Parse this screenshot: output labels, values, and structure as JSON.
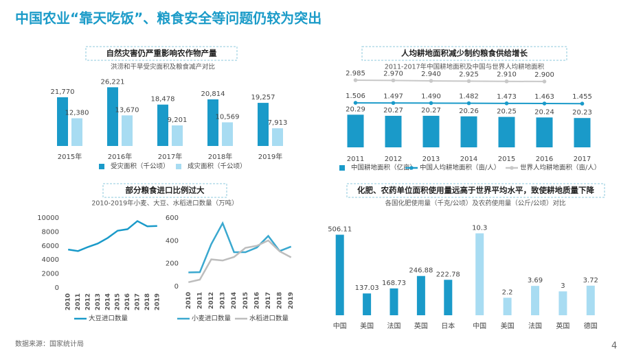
{
  "page": {
    "title": "中国农业“靠天吃饭”、粮食安全等问题仍较为突出",
    "source": "数据来源：国家统计局",
    "page_number": 4
  },
  "chart_data": [
    {
      "type": "bar",
      "title": "自然灾害仍严重影响农作物产量",
      "subtitle": "洪涝和干旱受灾面积及粮食减产对比",
      "categories": [
        "2015年",
        "2016年",
        "2017年",
        "2018年",
        "2019年"
      ],
      "ylim": [
        0,
        30000
      ],
      "series": [
        {
          "name": "受灾面积（千公顷）",
          "color": "#1a9ac9",
          "values": [
            21770,
            26221,
            18478,
            20814,
            19257
          ],
          "value_labels": [
            "21,770",
            "26,221",
            "18,478",
            "20,814",
            "19,257"
          ]
        },
        {
          "name": "成灾面积（千公顷）",
          "color": "#a8dcf2",
          "values": [
            12380,
            13670,
            9201,
            10569,
            7913
          ],
          "value_labels": [
            "12,380",
            "13,670",
            "9,201",
            "10,569",
            "7,913"
          ]
        }
      ]
    },
    {
      "type": "bar_line",
      "title": "人均耕地面积减少制约粮食供给增长",
      "subtitle": "2011-2017年中国耕地面积及中国与世界人均耕地面积",
      "categories": [
        "2011",
        "2012",
        "2013",
        "2014",
        "2015",
        "2016",
        "2017"
      ],
      "ylim": [
        19.7,
        21.0
      ],
      "y2lim": [
        -1.4,
        3.3
      ],
      "series": [
        {
          "name": "中国耕地面积（亿亩）",
          "color": "#1a9ac9",
          "values": [
            20.29,
            20.27,
            20.27,
            20.26,
            20.25,
            20.24,
            20.23
          ]
        },
        {
          "name": "中国人均耕地面积（亩/人）",
          "color": "#1a9ac9",
          "axis": "y2",
          "values": [
            1.506,
            1.497,
            1.49,
            1.482,
            1.473,
            1.463,
            1.455
          ],
          "value_labels": [
            "1.506",
            "1.497",
            "1.490",
            "1.482",
            "1.473",
            "1.463",
            "1.455"
          ]
        },
        {
          "name": "世界人均耕地面积（亩/人）",
          "color": "#c8c8c8",
          "axis": "y2",
          "values": [
            2.985,
            2.97,
            2.94,
            2.925,
            2.91,
            2.9,
            null
          ],
          "value_labels": [
            "2.985",
            "2.970",
            "2.940",
            "2.925",
            "2.910",
            "2.900",
            null
          ]
        }
      ]
    },
    {
      "type": "line",
      "title": "部分粮食进口比例过大",
      "subtitle": "2010-2019年小麦、大豆、水稻进口数量（万吨）",
      "categories": [
        "2010",
        "2011",
        "2012",
        "2013",
        "2014",
        "2015",
        "2016",
        "2017",
        "2018",
        "2019"
      ],
      "ylim": [
        0,
        10000
      ],
      "yticks": [
        0,
        2000,
        4000,
        6000,
        8000,
        10000
      ],
      "series": [
        {
          "name": "大豆进口数量",
          "color": "#1a9ac9",
          "values": [
            5480,
            5264,
            5838,
            6338,
            7140,
            8169,
            8391,
            9553,
            8803,
            8851
          ]
        }
      ]
    },
    {
      "type": "line",
      "categories": [
        "2010",
        "2011",
        "2012",
        "2013",
        "2014",
        "2015",
        "2016",
        "2017",
        "2018",
        "2019"
      ],
      "ylim": [
        0,
        600
      ],
      "yticks": [
        0,
        200,
        400,
        600
      ],
      "series": [
        {
          "name": "小麦进口数量",
          "color": "#3aa8cf",
          "values": [
            123,
            125,
            370,
            554,
            300,
            300,
            341,
            442,
            310,
            349
          ]
        },
        {
          "name": "水稻进口数量",
          "color": "#bdbdbd",
          "values": [
            37,
            60,
            237,
            227,
            258,
            338,
            356,
            403,
            308,
            255
          ]
        }
      ]
    },
    {
      "type": "bar",
      "title": "化肥、农药单位面积使用量远高于世界平均水平，致使耕地质量下降",
      "subtitle": "各国化肥使用量（千克/公顷）及农药使用量（公斤/公顷）对比",
      "categories": [
        "中国",
        "美国",
        "法国",
        "英国",
        "日本"
      ],
      "ylim": [
        0,
        560
      ],
      "color": "#1a9ac9",
      "values": [
        506.11,
        137.03,
        168.73,
        246.88,
        222.78
      ]
    },
    {
      "type": "bar",
      "categories": [
        "中国",
        "美国",
        "法国",
        "英国",
        "德国"
      ],
      "ylim": [
        0,
        11.2
      ],
      "color": "#a8dcf2",
      "values": [
        10.3,
        2.2,
        3.69,
        3,
        3.72
      ]
    }
  ]
}
